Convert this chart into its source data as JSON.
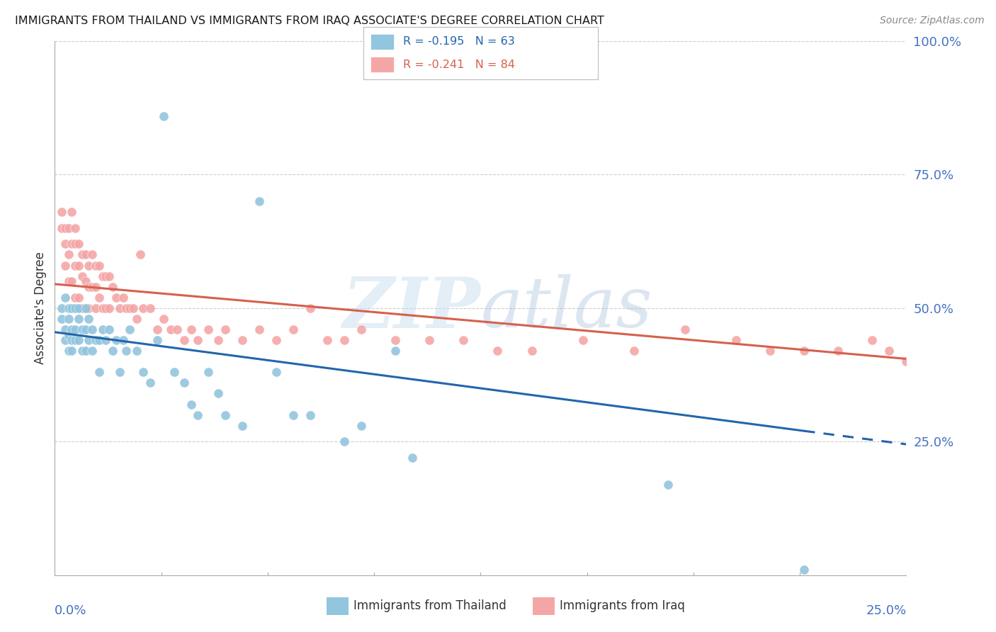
{
  "title": "IMMIGRANTS FROM THAILAND VS IMMIGRANTS FROM IRAQ ASSOCIATE'S DEGREE CORRELATION CHART",
  "source": "Source: ZipAtlas.com",
  "ylabel": "Associate's Degree",
  "right_yticks": [
    "100.0%",
    "75.0%",
    "50.0%",
    "25.0%"
  ],
  "right_ytick_vals": [
    1.0,
    0.75,
    0.5,
    0.25
  ],
  "legend_thailand": "R = -0.195   N = 63",
  "legend_iraq": "R = -0.241   N = 84",
  "thailand_color": "#92c5de",
  "iraq_color": "#f4a6a6",
  "thailand_line_color": "#2166ac",
  "iraq_line_color": "#d6604d",
  "watermark": "ZIPatlas",
  "xmin": 0.0,
  "xmax": 0.25,
  "ymin": 0.0,
  "ymax": 1.0,
  "thailand_line_x0": 0.0,
  "thailand_line_y0": 0.455,
  "thailand_line_x1": 0.22,
  "thailand_line_y1": 0.27,
  "thailand_line_dash_x1": 0.25,
  "thailand_line_dash_y1": 0.245,
  "iraq_line_x0": 0.0,
  "iraq_line_y0": 0.545,
  "iraq_line_x1": 0.25,
  "iraq_line_y1": 0.405,
  "thailand_x": [
    0.002,
    0.002,
    0.003,
    0.003,
    0.003,
    0.004,
    0.004,
    0.004,
    0.004,
    0.005,
    0.005,
    0.005,
    0.005,
    0.006,
    0.006,
    0.006,
    0.007,
    0.007,
    0.007,
    0.008,
    0.008,
    0.009,
    0.009,
    0.009,
    0.01,
    0.01,
    0.011,
    0.011,
    0.012,
    0.013,
    0.013,
    0.014,
    0.015,
    0.016,
    0.017,
    0.018,
    0.019,
    0.02,
    0.021,
    0.022,
    0.024,
    0.026,
    0.028,
    0.03,
    0.032,
    0.035,
    0.038,
    0.04,
    0.042,
    0.045,
    0.048,
    0.05,
    0.055,
    0.06,
    0.065,
    0.07,
    0.075,
    0.085,
    0.09,
    0.1,
    0.105,
    0.18,
    0.22
  ],
  "thailand_y": [
    0.5,
    0.48,
    0.52,
    0.46,
    0.44,
    0.5,
    0.48,
    0.45,
    0.42,
    0.5,
    0.46,
    0.44,
    0.42,
    0.5,
    0.46,
    0.44,
    0.5,
    0.48,
    0.44,
    0.46,
    0.42,
    0.5,
    0.46,
    0.42,
    0.48,
    0.44,
    0.46,
    0.42,
    0.44,
    0.44,
    0.38,
    0.46,
    0.44,
    0.46,
    0.42,
    0.44,
    0.38,
    0.44,
    0.42,
    0.46,
    0.42,
    0.38,
    0.36,
    0.44,
    0.86,
    0.38,
    0.36,
    0.32,
    0.3,
    0.38,
    0.34,
    0.3,
    0.28,
    0.7,
    0.38,
    0.3,
    0.3,
    0.25,
    0.28,
    0.42,
    0.22,
    0.17,
    0.01
  ],
  "iraq_x": [
    0.002,
    0.002,
    0.003,
    0.003,
    0.003,
    0.004,
    0.004,
    0.004,
    0.005,
    0.005,
    0.005,
    0.006,
    0.006,
    0.006,
    0.006,
    0.007,
    0.007,
    0.007,
    0.008,
    0.008,
    0.008,
    0.009,
    0.009,
    0.009,
    0.01,
    0.01,
    0.01,
    0.011,
    0.011,
    0.012,
    0.012,
    0.012,
    0.013,
    0.013,
    0.014,
    0.014,
    0.015,
    0.015,
    0.016,
    0.016,
    0.017,
    0.018,
    0.019,
    0.02,
    0.021,
    0.022,
    0.023,
    0.024,
    0.025,
    0.026,
    0.028,
    0.03,
    0.032,
    0.034,
    0.036,
    0.038,
    0.04,
    0.042,
    0.045,
    0.048,
    0.05,
    0.055,
    0.06,
    0.065,
    0.07,
    0.075,
    0.08,
    0.085,
    0.09,
    0.1,
    0.11,
    0.12,
    0.13,
    0.14,
    0.155,
    0.17,
    0.185,
    0.2,
    0.21,
    0.22,
    0.23,
    0.24,
    0.245,
    0.25
  ],
  "iraq_y": [
    0.68,
    0.65,
    0.65,
    0.62,
    0.58,
    0.65,
    0.6,
    0.55,
    0.68,
    0.62,
    0.55,
    0.65,
    0.62,
    0.58,
    0.52,
    0.62,
    0.58,
    0.52,
    0.6,
    0.56,
    0.5,
    0.6,
    0.55,
    0.5,
    0.58,
    0.54,
    0.5,
    0.6,
    0.54,
    0.58,
    0.54,
    0.5,
    0.58,
    0.52,
    0.56,
    0.5,
    0.56,
    0.5,
    0.56,
    0.5,
    0.54,
    0.52,
    0.5,
    0.52,
    0.5,
    0.5,
    0.5,
    0.48,
    0.6,
    0.5,
    0.5,
    0.46,
    0.48,
    0.46,
    0.46,
    0.44,
    0.46,
    0.44,
    0.46,
    0.44,
    0.46,
    0.44,
    0.46,
    0.44,
    0.46,
    0.5,
    0.44,
    0.44,
    0.46,
    0.44,
    0.44,
    0.44,
    0.42,
    0.42,
    0.44,
    0.42,
    0.46,
    0.44,
    0.42,
    0.42,
    0.42,
    0.44,
    0.42,
    0.4
  ]
}
